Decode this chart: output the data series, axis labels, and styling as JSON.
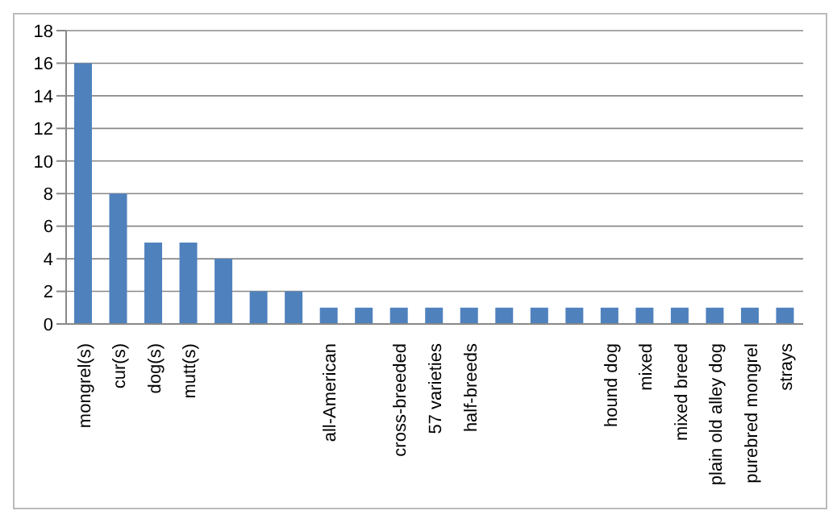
{
  "chart_data": {
    "type": "bar",
    "categories": [
      "mongrel(s)",
      "cur(s)",
      "dog(s)",
      "mutt(s)",
      null,
      null,
      null,
      "all-American",
      null,
      "cross-breeded",
      "57 varieties",
      "half-breeds",
      null,
      null,
      null,
      "hound dog",
      "mixed",
      "mixed breed",
      "plain old alley dog",
      "purebred mongrel",
      "strays"
    ],
    "values": [
      16,
      8,
      5,
      5,
      4,
      2,
      2,
      1,
      1,
      1,
      1,
      1,
      1,
      1,
      1,
      1,
      1,
      1,
      1,
      1,
      1
    ],
    "color": "#4f81bd",
    "ylim": [
      0,
      18
    ],
    "yticks": [
      0,
      2,
      4,
      6,
      8,
      10,
      12,
      14,
      16,
      18
    ],
    "grid": "y"
  }
}
